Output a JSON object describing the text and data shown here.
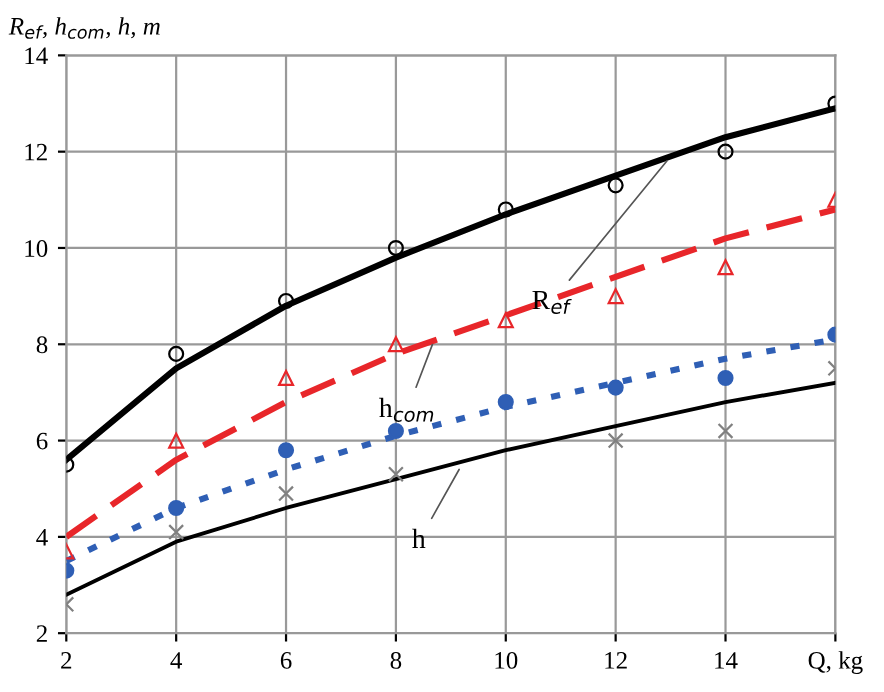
{
  "chart_data": {
    "type": "line",
    "ylabel": "R$_{ef}$, h$_{com}$, h, m",
    "x": [
      2,
      4,
      6,
      8,
      10,
      12,
      14,
      16
    ],
    "xlim": [
      2,
      16
    ],
    "ylim": [
      2,
      14
    ],
    "xticks": [
      2,
      4,
      6,
      8,
      10,
      12,
      14,
      {
        "value": 16,
        "label": "Q, kg"
      }
    ],
    "yticks": [
      2,
      4,
      6,
      8,
      10,
      12,
      14
    ],
    "grid": true,
    "legend": false,
    "series": [
      {
        "type": "scatter",
        "color": "#000000",
        "marker": "circle",
        "values": [
          5.5,
          7.8,
          8.9,
          10.0,
          10.8,
          11.3,
          12.0,
          13.0
        ]
      },
      {
        "color": "#000000",
        "line_style": "solid",
        "values": [
          5.6,
          7.5,
          8.8,
          9.8,
          10.7,
          11.5,
          12.3,
          12.9
        ]
      },
      {
        "type": "scatter",
        "color": "#e8262a",
        "marker": "triangle",
        "values": [
          3.7,
          6.0,
          7.3,
          8.0,
          8.5,
          9.0,
          9.6,
          11.0
        ]
      },
      {
        "color": "#e8262a",
        "line_style": "dashed",
        "values": [
          4.0,
          5.6,
          6.8,
          7.8,
          8.6,
          9.4,
          10.2,
          10.8
        ]
      },
      {
        "type": "scatter",
        "color": "#2f5fb5",
        "marker": "filled_circle",
        "values": [
          3.3,
          4.6,
          5.8,
          6.2,
          6.8,
          7.1,
          7.3,
          8.2
        ]
      },
      {
        "color": "#2f5fb5",
        "line_style": "dotted",
        "values": [
          3.5,
          4.6,
          5.4,
          6.1,
          6.7,
          7.2,
          7.7,
          8.1
        ]
      },
      {
        "type": "scatter",
        "color": "#808080",
        "marker": "cross",
        "values": [
          2.6,
          4.1,
          4.9,
          5.3,
          null,
          6.0,
          6.2,
          7.5
        ]
      },
      {
        "color": "#000000",
        "line_style": "solid",
        "values": [
          2.8,
          3.9,
          4.6,
          5.2,
          5.8,
          6.3,
          6.8,
          7.2
        ]
      }
    ],
    "annotations": [
      {
        "text": "R$_{ef}$",
        "x": 13,
        "y": 11.9
      },
      {
        "text": "h$_{com}$",
        "x": 8.7,
        "y": 8.1
      },
      {
        "text": "h",
        "x": 9.2,
        "y": 5.5
      }
    ]
  }
}
